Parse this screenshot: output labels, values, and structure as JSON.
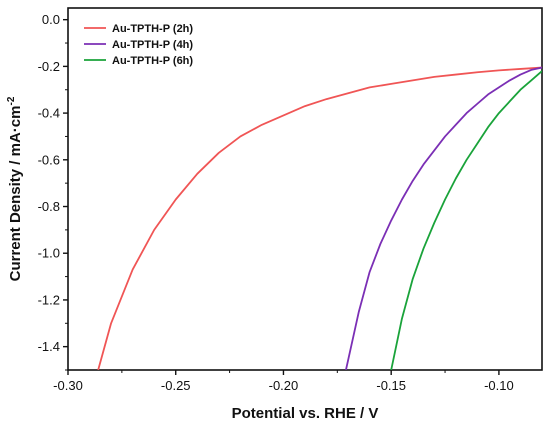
{
  "chart_data": {
    "type": "line",
    "xlabel": "Potential vs. RHE / V",
    "ylabel_main": "Current Density / mA",
    "ylabel_unit": "cm",
    "ylabel_exp": "-2",
    "xlim": [
      -0.3,
      -0.08
    ],
    "ylim": [
      -1.5,
      0.05
    ],
    "xticks": [
      -0.3,
      -0.25,
      -0.2,
      -0.15,
      -0.1
    ],
    "xtick_labels": [
      "-0.30",
      "-0.25",
      "-0.20",
      "-0.15",
      "-0.10"
    ],
    "yticks": [
      0.0,
      -0.2,
      -0.4,
      -0.6,
      -0.8,
      -1.0,
      -1.2,
      -1.4
    ],
    "ytick_labels": [
      "0.0",
      "-0.2",
      "-0.4",
      "-0.6",
      "-0.8",
      "-1.0",
      "-1.2",
      "-1.4"
    ],
    "legend_position": "top-left",
    "grid": false,
    "series": [
      {
        "name": "Au-TPTH-P  (2h)",
        "color": "#f05555",
        "x": [
          -0.286,
          -0.28,
          -0.27,
          -0.26,
          -0.25,
          -0.24,
          -0.23,
          -0.22,
          -0.21,
          -0.2,
          -0.19,
          -0.18,
          -0.17,
          -0.16,
          -0.15,
          -0.14,
          -0.13,
          -0.12,
          -0.11,
          -0.1,
          -0.09,
          -0.08
        ],
        "y": [
          -1.5,
          -1.3,
          -1.07,
          -0.9,
          -0.77,
          -0.66,
          -0.57,
          -0.5,
          -0.45,
          -0.41,
          -0.37,
          -0.34,
          -0.315,
          -0.29,
          -0.275,
          -0.26,
          -0.245,
          -0.235,
          -0.225,
          -0.217,
          -0.211,
          -0.205
        ]
      },
      {
        "name": "Au-TPTH-P (4h)",
        "color": "#7b2fb5",
        "x": [
          -0.171,
          -0.165,
          -0.16,
          -0.155,
          -0.15,
          -0.145,
          -0.14,
          -0.135,
          -0.13,
          -0.125,
          -0.12,
          -0.115,
          -0.11,
          -0.105,
          -0.1,
          -0.095,
          -0.09,
          -0.085,
          -0.08
        ],
        "y": [
          -1.5,
          -1.25,
          -1.08,
          -0.96,
          -0.86,
          -0.77,
          -0.69,
          -0.62,
          -0.56,
          -0.5,
          -0.45,
          -0.4,
          -0.36,
          -0.32,
          -0.29,
          -0.26,
          -0.235,
          -0.215,
          -0.205
        ]
      },
      {
        "name": "Au-TPTH-P (6h)",
        "color": "#1aa33a",
        "x": [
          -0.15,
          -0.145,
          -0.14,
          -0.135,
          -0.13,
          -0.125,
          -0.12,
          -0.115,
          -0.11,
          -0.105,
          -0.1,
          -0.095,
          -0.09,
          -0.085,
          -0.08
        ],
        "y": [
          -1.5,
          -1.28,
          -1.11,
          -0.98,
          -0.87,
          -0.77,
          -0.68,
          -0.6,
          -0.53,
          -0.46,
          -0.4,
          -0.35,
          -0.3,
          -0.26,
          -0.22
        ]
      }
    ]
  }
}
